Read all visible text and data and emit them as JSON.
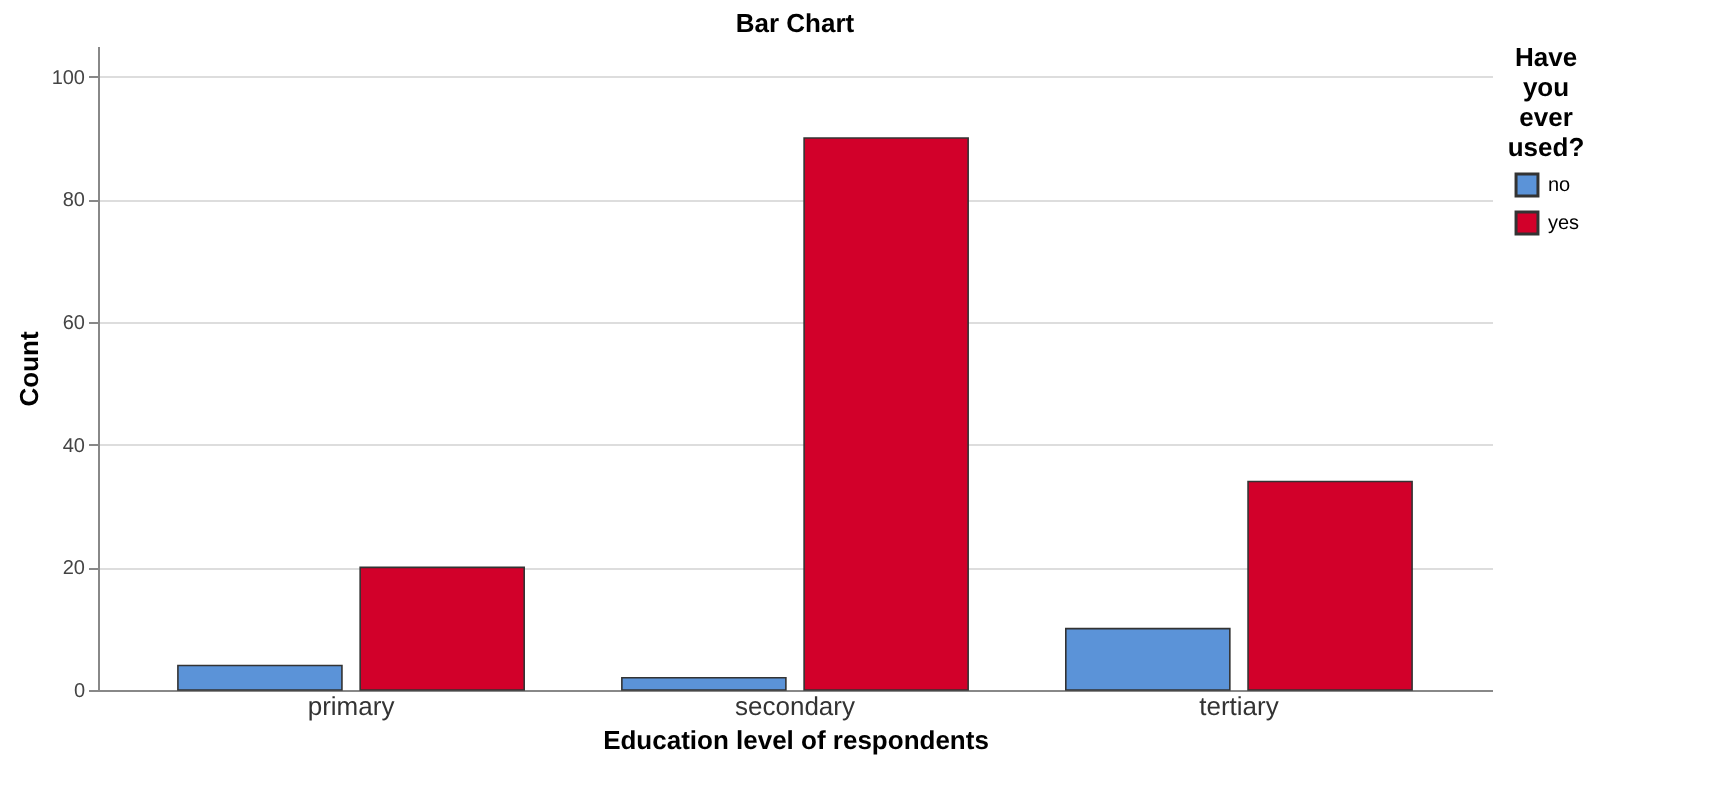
{
  "chart_data": {
    "type": "bar",
    "title": "Bar Chart",
    "xlabel": "Education level of respondents",
    "ylabel": "Count",
    "legend_title": "Have you ever used?",
    "categories": [
      "primary",
      "secondary",
      "tertiary"
    ],
    "series": [
      {
        "name": "no",
        "color": "#5b93d8",
        "values": [
          4,
          2,
          10
        ]
      },
      {
        "name": "yes",
        "color": "#d2002a",
        "values": [
          20,
          90,
          34
        ]
      }
    ],
    "ylim": [
      0,
      105
    ],
    "yticks": [
      0,
      20,
      40,
      60,
      80,
      100
    ],
    "grid": "y",
    "legend": "top right"
  }
}
